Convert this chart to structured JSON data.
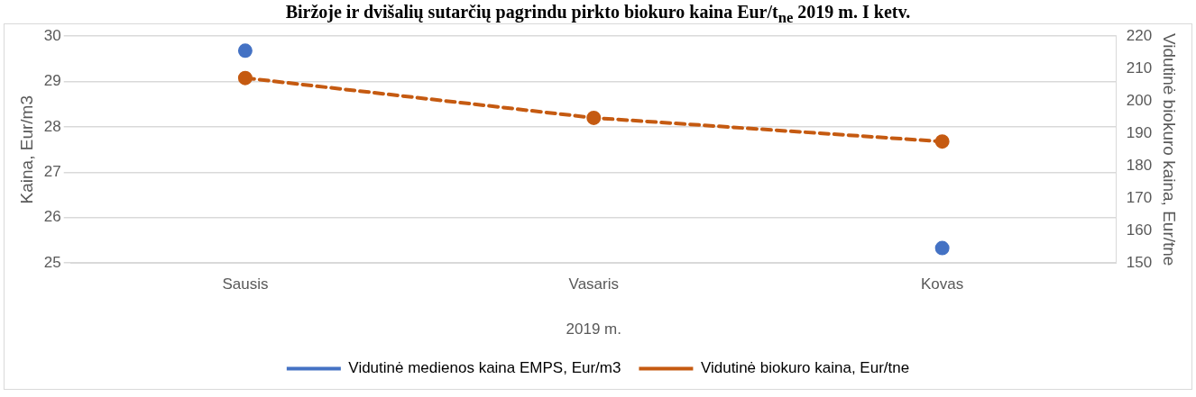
{
  "chart_data": {
    "type": "line",
    "title": "Biržoje ir dvišalių sutarčių pagrindu pirkto biokuro kaina Eur/t$_{ne}$ 2019 m. I ketv.",
    "categories": [
      "Sausis",
      "Vasaris",
      "Kovas"
    ],
    "xlabel": "2019 m.",
    "ylabel": "Kaina, Eur/m3",
    "y2label": "Vidutinė biokuro kaina, Eur/tne",
    "series": [
      {
        "name": "Vidutinė medienos kaina EMPS, Eur/m3",
        "type": "scatter",
        "color": "#4472c4",
        "values": [
          29.68,
          null,
          25.33
        ]
      },
      {
        "name": "Vidutinė biokuro kaina, Eur/tne",
        "color": "#c55a11",
        "values": [
          207.1,
          194.8,
          187.5
        ],
        "axis": "y2"
      }
    ],
    "ylim": [
      25,
      30
    ],
    "yticks": [
      25,
      26,
      27,
      28,
      29,
      30
    ],
    "y2lim": [
      150,
      220
    ],
    "y2ticks": [
      150,
      160,
      170,
      180,
      190,
      200,
      210,
      220
    ],
    "grid": "y",
    "legend": "bottom",
    "marker": "circle",
    "line_style": "dashed"
  }
}
